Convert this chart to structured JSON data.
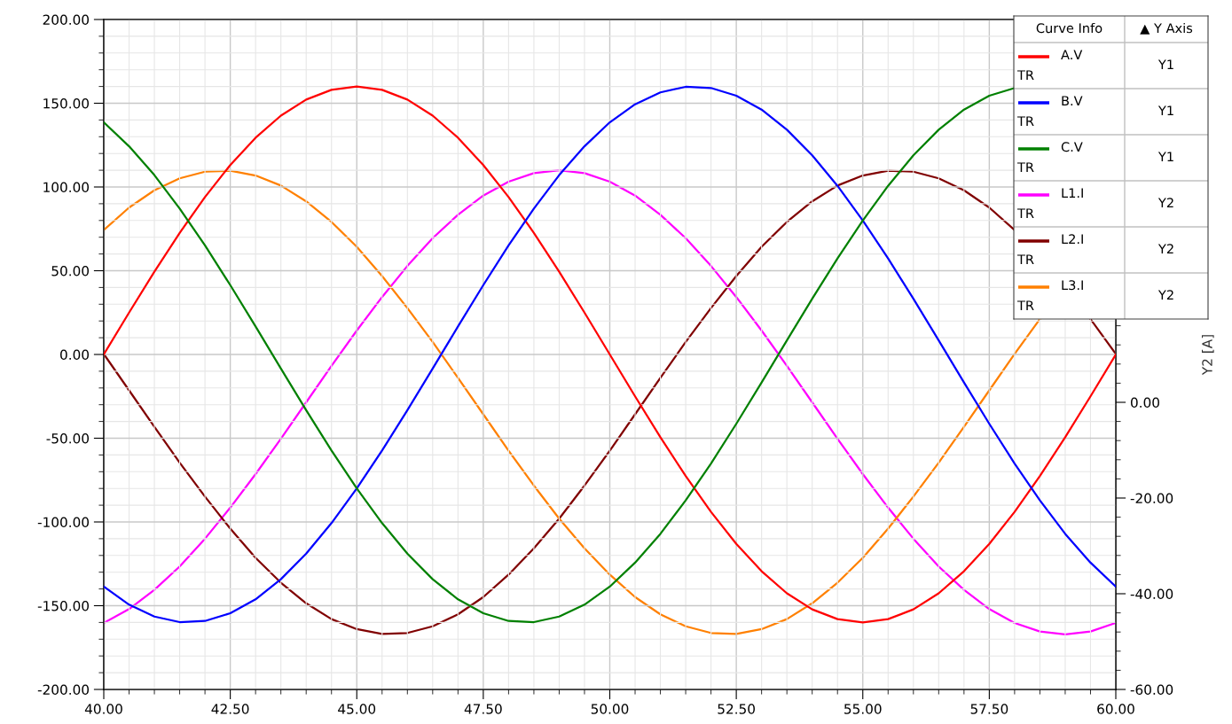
{
  "chart_data": {
    "type": "line",
    "x": [
      40,
      40.5,
      41,
      41.5,
      42,
      42.5,
      43,
      43.5,
      44,
      44.5,
      45,
      45.5,
      46,
      46.5,
      47,
      47.5,
      48,
      48.5,
      49,
      49.5,
      50,
      50.5,
      51,
      51.5,
      52,
      52.5,
      53,
      53.5,
      54,
      54.5,
      55,
      55.5,
      56,
      56.5,
      57,
      57.5,
      58,
      58.5,
      59,
      59.5,
      60
    ],
    "series": [
      {
        "name": "A.V",
        "color": "#ff0000",
        "values": [
          0,
          25.0,
          49.4,
          72.6,
          94.0,
          113.1,
          129.4,
          142.6,
          152.2,
          158.0,
          160.0,
          158.0,
          152.2,
          142.6,
          129.4,
          113.1,
          94.0,
          72.6,
          49.4,
          25.0,
          0,
          -25.0,
          -49.4,
          -72.6,
          -94.0,
          -113.1,
          -129.4,
          -142.6,
          -152.2,
          -158.0,
          -160.0,
          -158.0,
          -152.2,
          -142.6,
          -129.4,
          -113.1,
          -94.0,
          -72.6,
          -49.4,
          -25.0,
          0
        ]
      },
      {
        "name": "B.V",
        "color": "#0000ff",
        "values": [
          -138.6,
          -149.4,
          -156.5,
          -159.8,
          -159.1,
          -154.5,
          -146.2,
          -134.2,
          -118.9,
          -100.7,
          -80,
          -57.3,
          -33.3,
          -8.4,
          16.7,
          41.4,
          65.1,
          87.1,
          107.1,
          124.3,
          138.6,
          149.4,
          156.5,
          159.8,
          159.1,
          154.5,
          146.2,
          134.2,
          118.9,
          100.7,
          80,
          57.3,
          33.3,
          8.4,
          -16.7,
          -41.4,
          -65.1,
          -87.1,
          -107.1,
          -124.3,
          -138.6
        ]
      },
      {
        "name": "C.V",
        "color": "#008000",
        "values": [
          138.6,
          124.3,
          107.1,
          87.1,
          65.1,
          41.4,
          16.7,
          -8.4,
          -33.3,
          -57.3,
          -80,
          -100.7,
          -118.9,
          -134.2,
          -146.2,
          -154.5,
          -159.1,
          -159.8,
          -156.5,
          -149.4,
          -138.6,
          -124.3,
          -107.1,
          -87.1,
          -65.1,
          -41.4,
          -16.7,
          8.4,
          33.3,
          57.3,
          80,
          100.7,
          118.9,
          134.2,
          146.2,
          154.5,
          159.1,
          null,
          null,
          null,
          null
        ]
      },
      {
        "name": "L1.I",
        "color": "#ff00ff",
        "axis": "y2",
        "values": [
          -46.1,
          -43.2,
          -39.2,
          -34.3,
          -28.5,
          -22.0,
          -15.0,
          -7.6,
          0,
          7.6,
          15.0,
          22.0,
          28.5,
          34.3,
          39.2,
          43.2,
          46.1,
          47.9,
          48.5,
          47.9,
          46.1,
          43.2,
          39.2,
          34.3,
          28.5,
          22.0,
          15.0,
          7.6,
          0,
          -7.6,
          -15.0,
          -22.0,
          -28.5,
          -34.3,
          -39.2,
          -43.2,
          -46.1,
          -47.9,
          -48.5,
          -47.9,
          -46.1
        ]
      },
      {
        "name": "L2.I",
        "color": "#800000",
        "axis": "y2",
        "values": [
          10.1,
          2.5,
          -5.1,
          -12.6,
          -19.7,
          -26.4,
          -32.5,
          -37.7,
          -42.0,
          -45.3,
          -47.4,
          -48.4,
          -48.2,
          -46.8,
          -44.3,
          -40.7,
          -36.0,
          -30.5,
          -24.3,
          -17.4,
          -10.1,
          -2.5,
          5.1,
          12.6,
          19.7,
          26.4,
          32.5,
          37.7,
          42.0,
          45.3,
          47.4,
          48.4,
          48.2,
          46.8,
          44.3,
          40.7,
          36.0,
          null,
          null,
          17.4,
          10.1
        ]
      },
      {
        "name": "L3.I",
        "color": "#ff8000",
        "axis": "y2",
        "values": [
          36.0,
          40.7,
          44.3,
          46.8,
          48.2,
          48.4,
          47.4,
          45.3,
          42.0,
          37.7,
          32.5,
          26.4,
          19.7,
          12.6,
          5.1,
          -2.5,
          -10.1,
          -17.4,
          -24.3,
          -30.5,
          -36.0,
          -40.7,
          -44.3,
          -46.8,
          -48.2,
          -48.4,
          -47.4,
          -45.3,
          -42.0,
          -37.7,
          -32.5,
          -26.4,
          -19.7,
          -12.6,
          -5.1,
          2.5,
          10.1,
          17.4,
          null,
          null,
          null
        ]
      }
    ],
    "xlim": [
      40,
      60
    ],
    "xticks": [
      {
        "value": 40,
        "label": "40.00"
      },
      {
        "value": 42.5,
        "label": "42.50"
      },
      {
        "value": 45,
        "label": "45.00"
      },
      {
        "value": 47.5,
        "label": "47.50"
      },
      {
        "value": 50,
        "label": "50.00"
      },
      {
        "value": 52.5,
        "label": "52.50"
      },
      {
        "value": 55,
        "label": "55.00"
      },
      {
        "value": 57.5,
        "label": "57.50"
      },
      {
        "value": 60,
        "label": "60.00"
      }
    ],
    "ylim": [
      -200,
      200
    ],
    "yticks": [
      {
        "value": -200,
        "label": "-200.00"
      },
      {
        "value": -150,
        "label": "-150.00"
      },
      {
        "value": -100,
        "label": "-100.00"
      },
      {
        "value": -50,
        "label": "-50.00"
      },
      {
        "value": 0,
        "label": "0.00"
      },
      {
        "value": 50,
        "label": "50.00"
      },
      {
        "value": 100,
        "label": "100.00"
      },
      {
        "value": 150,
        "label": "150.00"
      },
      {
        "value": 200,
        "label": "200.00"
      }
    ],
    "y2lim": [
      -60,
      80
    ],
    "y2ticks": [
      {
        "value": -60,
        "label": "-60.00"
      },
      {
        "value": -40,
        "label": "-40.00"
      },
      {
        "value": -20,
        "label": "-20.00"
      },
      {
        "value": 0,
        "label": "0.00"
      }
    ],
    "y2label": "Y2 [A]",
    "legend_title": "Curve Info",
    "annotations": [
      "▲ Y Axis",
      "TR",
      "Y1",
      "TR",
      "Y1",
      "TR",
      "Y1",
      "TR",
      "Y2",
      "TR",
      "Y2",
      "TR",
      "Y2"
    ],
    "grid": true,
    "legend": "top right",
    "line_style": "solid",
    "marker": "none"
  }
}
